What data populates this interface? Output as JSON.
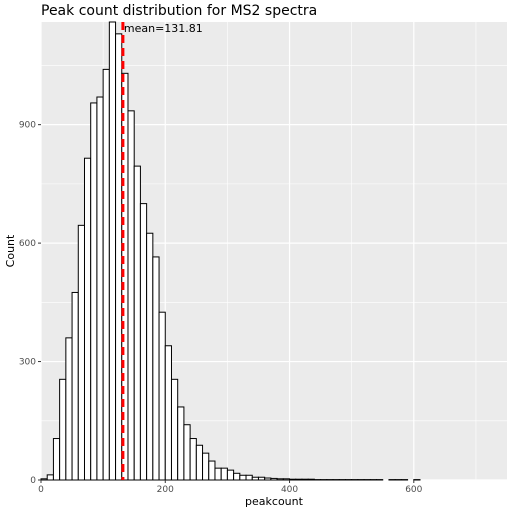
{
  "chart_data": {
    "type": "bar",
    "title": "Peak count distribution for MS2 spectra",
    "xlabel": "peakcount",
    "ylabel": "Count",
    "xlim": [
      0,
      750
    ],
    "ylim": [
      0,
      1160
    ],
    "x_ticks": [
      0,
      200,
      400,
      600
    ],
    "y_ticks": [
      0,
      300,
      600,
      900
    ],
    "grid": true,
    "bin_width": 10,
    "bin_starts": [
      0,
      10,
      20,
      30,
      40,
      50,
      60,
      70,
      80,
      90,
      100,
      110,
      120,
      130,
      140,
      150,
      160,
      170,
      180,
      190,
      200,
      210,
      220,
      230,
      240,
      250,
      260,
      270,
      280,
      290,
      300,
      310,
      320,
      330,
      340,
      350,
      360,
      370,
      380,
      390,
      400,
      410,
      420,
      430,
      440,
      450,
      460,
      470,
      480,
      490,
      500,
      510,
      520,
      530,
      540,
      550,
      560,
      570,
      580,
      590,
      600,
      610,
      620,
      630,
      640,
      650,
      660,
      670,
      680,
      690,
      700,
      710,
      720,
      730,
      740
    ],
    "values": [
      3,
      13,
      105,
      255,
      360,
      475,
      645,
      815,
      955,
      970,
      1040,
      1160,
      1130,
      1030,
      935,
      795,
      700,
      625,
      565,
      425,
      340,
      255,
      185,
      140,
      105,
      88,
      68,
      48,
      30,
      30,
      25,
      17,
      12,
      12,
      7,
      7,
      5,
      4,
      3,
      3,
      2,
      2,
      2,
      2,
      1,
      1,
      1,
      1,
      1,
      1,
      1,
      1,
      1,
      1,
      1,
      0,
      1,
      1,
      1,
      0,
      1,
      0,
      0,
      0,
      0,
      0,
      0,
      0,
      0,
      0,
      0,
      0,
      0,
      0,
      0
    ],
    "mean": 131.81,
    "mean_label": "mean=131.81",
    "mean_line_color": "#ff0000",
    "bar_fill": "#ffffff",
    "bar_stroke": "#000000",
    "panel_background": "#ebebeb",
    "grid_color": "#ffffff"
  }
}
